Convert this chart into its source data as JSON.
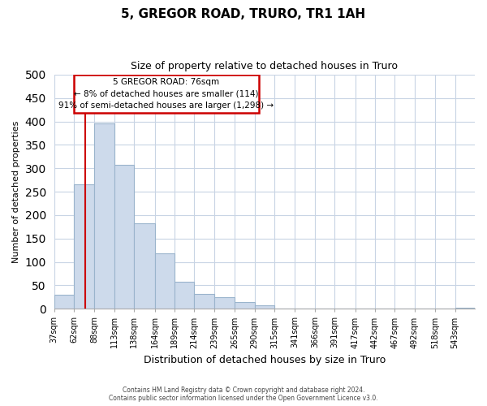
{
  "title": "5, GREGOR ROAD, TRURO, TR1 1AH",
  "subtitle": "Size of property relative to detached houses in Truro",
  "xlabel": "Distribution of detached houses by size in Truro",
  "ylabel": "Number of detached properties",
  "bar_labels": [
    "37sqm",
    "62sqm",
    "88sqm",
    "113sqm",
    "138sqm",
    "164sqm",
    "189sqm",
    "214sqm",
    "239sqm",
    "265sqm",
    "290sqm",
    "315sqm",
    "341sqm",
    "366sqm",
    "391sqm",
    "417sqm",
    "442sqm",
    "467sqm",
    "492sqm",
    "518sqm",
    "543sqm"
  ],
  "bar_values": [
    30,
    265,
    395,
    308,
    183,
    118,
    58,
    32,
    25,
    15,
    7,
    0,
    0,
    0,
    0,
    0,
    0,
    0,
    0,
    0,
    2
  ],
  "bar_color": "#cddaeb",
  "bar_edge_color": "#9ab4cc",
  "ylim": [
    0,
    500
  ],
  "yticks": [
    0,
    50,
    100,
    150,
    200,
    250,
    300,
    350,
    400,
    450,
    500
  ],
  "property_line_x": 76,
  "property_label": "5 GREGOR ROAD: 76sqm",
  "annotation_line1": "← 8% of detached houses are smaller (114)",
  "annotation_line2": "91% of semi-detached houses are larger (1,298) →",
  "annotation_box_color": "#ffffff",
  "annotation_box_edge": "#cc0000",
  "line_color": "#cc0000",
  "footer1": "Contains HM Land Registry data © Crown copyright and database right 2024.",
  "footer2": "Contains public sector information licensed under the Open Government Licence v3.0.",
  "bin_edges": [
    37,
    62,
    88,
    113,
    138,
    164,
    189,
    214,
    239,
    265,
    290,
    315,
    341,
    366,
    391,
    417,
    442,
    467,
    492,
    518,
    543,
    568
  ]
}
